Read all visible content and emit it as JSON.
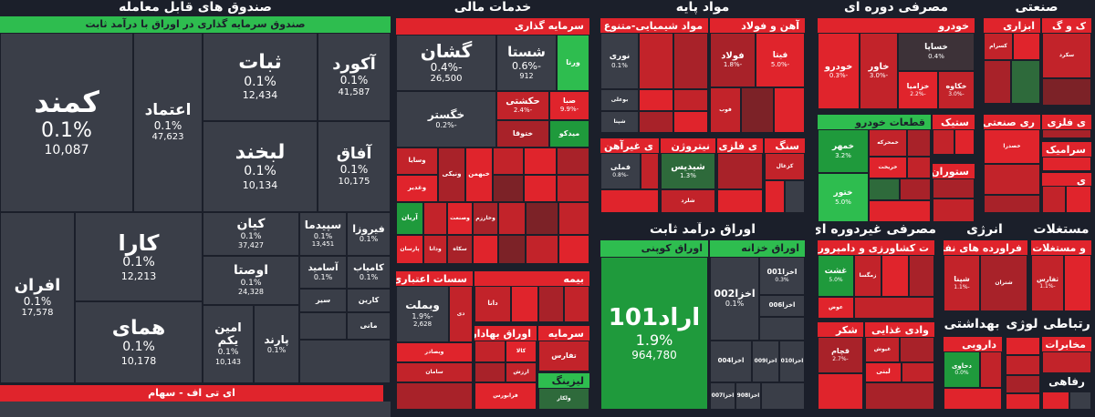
{
  "sections": {
    "funds": {
      "title": "صندوق های قابل معامله",
      "subtitle": "صندوق سرمایه گذاری در اوراق با درآمد ثابت",
      "footer": "ای تی اف - سهام"
    },
    "financial": {
      "title": "خدمات مالی",
      "sub1": "سرمایه گذاری",
      "sub2": "سسات اعتباری",
      "sub3": "بیمه",
      "sub4": "اوراق بهادار",
      "sub5": "سرمایه",
      "sub6": "لیزینگ"
    },
    "basic": {
      "title": "مواد پایه",
      "sub1": "مواد شیمیایی-متنوع",
      "sub2": "آهن و فولاد",
      "sub3": "ی غیرآهن",
      "sub4": "نیتروژن",
      "sub5": "ی فلزی",
      "sub6": "سنگ"
    },
    "fixed_income": {
      "title": "اوراق درآمد ثابت",
      "sub1": "اوراق کوپنی",
      "sub2": "اوراق خزانه"
    },
    "consumer_cyclic": {
      "title": "مصرفی دوره ای",
      "sub1": "خودرو",
      "sub2": "قطعات خودرو",
      "sub3": "ستیک",
      "sub4": "ستوران"
    },
    "industrial": {
      "title": "صنعتی",
      "sub1": "ک و گ",
      "sub2": "ابزاری",
      "sub3": "ری صنعتی",
      "sub4": "ی فلزی",
      "sub5": "سرامیک",
      "sub6": "ی"
    },
    "consumer_noncyclic": {
      "title": "مصرفی غیردوره ای",
      "sub1": "ت کشاورزی و دامپروری",
      "sub2": "وادی غذایی",
      "sub3": "شکر"
    },
    "energy": {
      "title": "انرژی",
      "sub1": "فراورده های نفتی"
    },
    "real_estate": {
      "title": "مستغلات",
      "sub1": "و مستغلات"
    },
    "health": {
      "title": "بهداشتی",
      "sub1": "دارویی"
    },
    "tech": {
      "title": "لوژی"
    },
    "telecom": {
      "title": "رتباطی",
      "sub1": "مخابرات"
    },
    "welfare": {
      "title": "رفاهی"
    },
    "funds_tiles": [
      {
        "name": "کمند",
        "pct": "0.1%",
        "val": "10,087"
      },
      {
        "name": "اعتماد",
        "pct": "0.1%",
        "val": "47,623"
      },
      {
        "name": "ثبات",
        "pct": "0.1%",
        "val": "12,434"
      },
      {
        "name": "آکورد",
        "pct": "0.1%",
        "val": "41,587"
      },
      {
        "name": "لبخند",
        "pct": "0.1%",
        "val": "10,134"
      },
      {
        "name": "آفاق",
        "pct": "0.1%",
        "val": "10,175"
      },
      {
        "name": "کارا",
        "pct": "0.1%",
        "val": "12,213"
      },
      {
        "name": "کیان",
        "pct": "0.1%",
        "val": "37,427"
      },
      {
        "name": "سپیدما",
        "pct": "0.1%",
        "val": "13,451"
      },
      {
        "name": "فیروزا",
        "pct": "0.1%",
        "val": ""
      },
      {
        "name": "افران",
        "pct": "0.1%",
        "val": "17,578"
      },
      {
        "name": "اوصتا",
        "pct": "0.1%",
        "val": "24,328"
      },
      {
        "name": "آسامید",
        "pct": "0.1%",
        "val": ""
      },
      {
        "name": "کامیاب",
        "pct": "0.1%",
        "val": ""
      },
      {
        "name": "همای",
        "pct": "0.1%",
        "val": "10,178"
      },
      {
        "name": "امین یکم",
        "pct": "0.1%",
        "val": "10,143"
      },
      {
        "name": "پارند",
        "pct": "0.1%",
        "val": ""
      },
      {
        "name": "سیر",
        "pct": "",
        "val": ""
      },
      {
        "name": "کارین",
        "pct": "",
        "val": ""
      },
      {
        "name": "مانی",
        "pct": "",
        "val": ""
      }
    ],
    "fin_tiles": [
      {
        "name": "گشان",
        "pct": "-0.4%",
        "val": "26,500"
      },
      {
        "name": "شستا",
        "pct": "-0.6%",
        "val": "912"
      },
      {
        "name": "ورنا",
        "pct": "",
        "val": ""
      },
      {
        "name": "خگستر",
        "pct": "-0.2%",
        "val": ""
      },
      {
        "name": "حکشتی",
        "pct": "-2.4%",
        "val": ""
      },
      {
        "name": "صبا",
        "pct": "-9.9%",
        "val": ""
      },
      {
        "name": "ختوقا",
        "pct": "",
        "val": ""
      },
      {
        "name": "میدکو",
        "pct": "",
        "val": ""
      },
      {
        "name": "وسایا",
        "pct": "",
        "val": ""
      },
      {
        "name": "وغدیر",
        "pct": "",
        "val": ""
      },
      {
        "name": "ونیکی",
        "pct": "",
        "val": ""
      },
      {
        "name": "خبهمن",
        "pct": "",
        "val": ""
      },
      {
        "name": "آریان",
        "pct": "",
        "val": ""
      },
      {
        "name": "وصنعت",
        "pct": "",
        "val": ""
      },
      {
        "name": "وخارزم",
        "pct": "",
        "val": ""
      },
      {
        "name": "وآتوس",
        "pct": "",
        "val": ""
      },
      {
        "name": "پارسان",
        "pct": "",
        "val": ""
      },
      {
        "name": "ودانا",
        "pct": "",
        "val": ""
      },
      {
        "name": "سکاه",
        "pct": "",
        "val": ""
      },
      {
        "name": "وبملت",
        "pct": "-1.9%",
        "val": "2,628"
      },
      {
        "name": "وبصادر",
        "pct": "",
        "val": ""
      },
      {
        "name": "سامان",
        "pct": "",
        "val": ""
      },
      {
        "name": "دی",
        "pct": "",
        "val": ""
      },
      {
        "name": "دانا",
        "pct": "",
        "val": ""
      },
      {
        "name": "کالا",
        "pct": "",
        "val": ""
      },
      {
        "name": "ارزش",
        "pct": "",
        "val": ""
      },
      {
        "name": "فرابورس",
        "pct": "",
        "val": ""
      },
      {
        "name": "تفارس",
        "pct": "",
        "val": ""
      },
      {
        "name": "ولکار",
        "pct": "",
        "val": ""
      }
    ],
    "basic_tiles": [
      {
        "name": "نوری",
        "pct": "0.1%",
        "val": ""
      },
      {
        "name": "بوعلی",
        "pct": "",
        "val": ""
      },
      {
        "name": "شپنا",
        "pct": "",
        "val": ""
      },
      {
        "name": "فولاد",
        "pct": "-1.8%",
        "val": ""
      },
      {
        "name": "فیتا",
        "pct": "-5.0%",
        "val": ""
      },
      {
        "name": "فوب",
        "pct": "",
        "val": ""
      },
      {
        "name": "فملی",
        "pct": "-0.8%",
        "val": ""
      },
      {
        "name": "شیدیس",
        "pct": "1.3%",
        "val": ""
      },
      {
        "name": "شلرد",
        "pct": "",
        "val": ""
      },
      {
        "name": "کزغال",
        "pct": "",
        "val": ""
      }
    ],
    "fixed_tiles": [
      {
        "name": "اراد101",
        "pct": "1.9%",
        "val": "964,780"
      },
      {
        "name": "اخزا002",
        "pct": "0.1%",
        "val": ""
      },
      {
        "name": "اخزا001",
        "pct": "0.3%",
        "val": ""
      },
      {
        "name": "اخزا006",
        "pct": "",
        "val": ""
      },
      {
        "name": "اخزا004",
        "pct": "",
        "val": ""
      },
      {
        "name": "اخزا009",
        "pct": "",
        "val": ""
      },
      {
        "name": "اخزا010",
        "pct": "",
        "val": ""
      },
      {
        "name": "اخزا007",
        "pct": "",
        "val": ""
      },
      {
        "name": "اخزا908",
        "pct": "",
        "val": ""
      }
    ],
    "cyc_tiles": [
      {
        "name": "خساپا",
        "pct": "0.4%",
        "val": ""
      },
      {
        "name": "خودرو",
        "pct": "-0.3%",
        "val": ""
      },
      {
        "name": "خاور",
        "pct": "-3.0%",
        "val": ""
      },
      {
        "name": "خزامیا",
        "pct": "-2.2%",
        "val": ""
      },
      {
        "name": "خکاوه",
        "pct": "-3.0%",
        "val": ""
      },
      {
        "name": "خمهر",
        "pct": "3.2%",
        "val": ""
      },
      {
        "name": "ختور",
        "pct": "5.0%",
        "val": ""
      },
      {
        "name": "خمحرکه",
        "pct": "",
        "val": ""
      },
      {
        "name": "خریخت",
        "pct": "",
        "val": ""
      }
    ],
    "ind_tiles": [
      {
        "name": "کسرام",
        "pct": "",
        "val": ""
      },
      {
        "name": "سکرد",
        "pct": "",
        "val": ""
      },
      {
        "name": "خصدرا",
        "pct": "",
        "val": ""
      }
    ],
    "noncyc_tiles": [
      {
        "name": "غشت",
        "pct": "5.0%",
        "val": ""
      },
      {
        "name": "زمگسا",
        "pct": "",
        "val": ""
      },
      {
        "name": "بهپاک",
        "pct": "",
        "val": ""
      },
      {
        "name": "قچام",
        "pct": "-2.7%",
        "val": ""
      },
      {
        "name": "عوض",
        "pct": "",
        "val": ""
      },
      {
        "name": "غیوش",
        "pct": "",
        "val": ""
      },
      {
        "name": "لبنی",
        "pct": "",
        "val": ""
      }
    ],
    "energy_tiles": [
      {
        "name": "شپنا",
        "pct": "-1.1%",
        "val": ""
      },
      {
        "name": "شتران",
        "pct": "",
        "val": ""
      }
    ],
    "re_tiles": [
      {
        "name": "ثفارس",
        "pct": "-1.1%",
        "val": ""
      }
    ],
    "health_tiles": [
      {
        "name": "دحاوی",
        "pct": "0.0%",
        "val": ""
      }
    ]
  }
}
